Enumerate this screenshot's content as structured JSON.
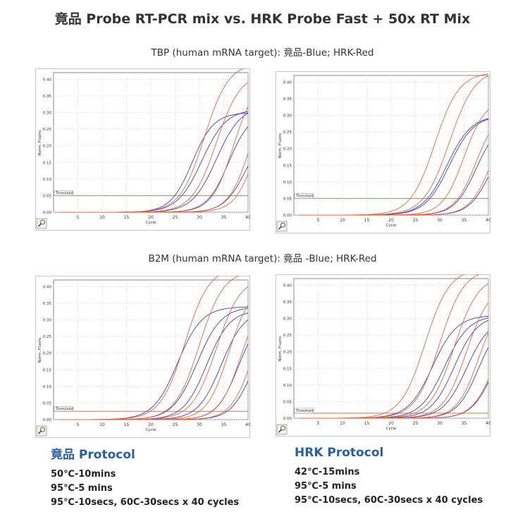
{
  "title": "竟品 Probe RT-PCR mix vs. HRK Probe Fast + 50x RT Mix",
  "subtitles": {
    "tbp": "TBP (human mRNA target): 竟品-Blue; HRK-Red",
    "b2m": "B2M (human mRNA target): 竟品 -Blue; HRK-Red"
  },
  "protocols": {
    "left": {
      "title": "竟品 Protocol",
      "lines": [
        "50℃-10mins",
        "95℃-5  mins",
        "95℃-10secs,  60C-30secs x 40 cycles"
      ]
    },
    "right": {
      "title": "HRK Protocol",
      "lines": [
        "42℃-15mins",
        "95℃-5  mins",
        "95℃-10secs,  60C-30secs x 40 cycles"
      ]
    }
  },
  "colors": {
    "blue": "#3b3fc2",
    "red": "#e8643a",
    "threshold": "#e07040"
  },
  "chart_data": [
    {
      "id": "tbp-left",
      "type": "line",
      "xlabel": "Cycle",
      "ylabel": "Norm. Fluoro.",
      "xlim": [
        0,
        40
      ],
      "ylim": [
        0,
        0.42
      ],
      "xticks": [
        "5",
        "10",
        "15",
        "20",
        "25",
        "30",
        "35",
        "40"
      ],
      "yticks": [
        "0.00",
        "0.05",
        "0.10",
        "0.15",
        "0.20",
        "0.25",
        "0.30",
        "0.35",
        "0.40"
      ],
      "threshold": 0.05,
      "threshold_label": "Threshold",
      "series": [
        {
          "color": "blue",
          "x0": 28.5,
          "max": 0.3,
          "k": 0.45
        },
        {
          "color": "blue",
          "x0": 30.5,
          "max": 0.31,
          "k": 0.4
        },
        {
          "color": "blue",
          "x0": 33.5,
          "max": 0.32,
          "k": 0.4
        },
        {
          "color": "blue",
          "x0": 36.0,
          "max": 0.3,
          "k": 0.45
        },
        {
          "color": "blue",
          "x0": 39.5,
          "max": 0.25,
          "k": 0.45
        },
        {
          "color": "red",
          "x0": 31.0,
          "max": 0.45,
          "k": 0.4
        },
        {
          "color": "red",
          "x0": 33.5,
          "max": 0.42,
          "k": 0.4
        },
        {
          "color": "red",
          "x0": 37.0,
          "max": 0.4,
          "k": 0.45
        },
        {
          "color": "red",
          "x0": 40.5,
          "max": 0.4,
          "k": 0.45
        },
        {
          "color": "red",
          "x0": 42.0,
          "max": 0.4,
          "k": 0.45
        }
      ]
    },
    {
      "id": "tbp-right",
      "type": "line",
      "xlabel": "Cycle",
      "ylabel": "Norm. Fluoro.",
      "xlim": [
        0,
        40
      ],
      "ylim": [
        0,
        0.42
      ],
      "xticks": [
        "5",
        "10",
        "15",
        "20",
        "25",
        "30",
        "35",
        "40"
      ],
      "yticks": [
        "0.00",
        "0.05",
        "0.10",
        "0.15",
        "0.20",
        "0.25",
        "0.30",
        "0.35",
        "0.40"
      ],
      "threshold": 0.05,
      "threshold_label": "Threshold",
      "series": [
        {
          "color": "blue",
          "x0": 31.5,
          "max": 0.3,
          "k": 0.4
        },
        {
          "color": "blue",
          "x0": 32.0,
          "max": 0.3,
          "k": 0.4
        },
        {
          "color": "blue",
          "x0": 37.5,
          "max": 0.28,
          "k": 0.45
        },
        {
          "color": "blue",
          "x0": 40.5,
          "max": 0.26,
          "k": 0.45
        },
        {
          "color": "red",
          "x0": 29.0,
          "max": 0.43,
          "k": 0.4
        },
        {
          "color": "red",
          "x0": 32.0,
          "max": 0.44,
          "k": 0.38
        },
        {
          "color": "red",
          "x0": 35.0,
          "max": 0.35,
          "k": 0.45
        },
        {
          "color": "red",
          "x0": 37.5,
          "max": 0.32,
          "k": 0.45
        },
        {
          "color": "red",
          "x0": 40.5,
          "max": 0.3,
          "k": 0.45
        }
      ]
    },
    {
      "id": "b2m-left",
      "type": "line",
      "xlabel": "Cycle",
      "ylabel": "Norm. Fluoro.",
      "xlim": [
        0,
        40
      ],
      "ylim": [
        0,
        0.42
      ],
      "xticks": [
        "5",
        "10",
        "15",
        "20",
        "25",
        "30",
        "35",
        "40"
      ],
      "yticks": [
        "0.00",
        "0.05",
        "0.10",
        "0.15",
        "0.20",
        "0.25",
        "0.30",
        "0.35",
        "0.40"
      ],
      "threshold": 0.025,
      "threshold_label": "Threshold",
      "series": [
        {
          "color": "blue",
          "x0": 25.5,
          "max": 0.34,
          "k": 0.4
        },
        {
          "color": "blue",
          "x0": 29.5,
          "max": 0.34,
          "k": 0.4
        },
        {
          "color": "blue",
          "x0": 31.5,
          "max": 0.33,
          "k": 0.42
        },
        {
          "color": "blue",
          "x0": 34.5,
          "max": 0.33,
          "k": 0.42
        },
        {
          "color": "blue",
          "x0": 38.0,
          "max": 0.32,
          "k": 0.45
        },
        {
          "color": "blue",
          "x0": 41.0,
          "max": 0.3,
          "k": 0.45
        },
        {
          "color": "red",
          "x0": 27.0,
          "max": 0.46,
          "k": 0.4
        },
        {
          "color": "red",
          "x0": 30.0,
          "max": 0.45,
          "k": 0.4
        },
        {
          "color": "red",
          "x0": 33.5,
          "max": 0.43,
          "k": 0.4
        },
        {
          "color": "red",
          "x0": 36.0,
          "max": 0.4,
          "k": 0.45
        },
        {
          "color": "red",
          "x0": 38.5,
          "max": 0.38,
          "k": 0.45
        },
        {
          "color": "red",
          "x0": 41.0,
          "max": 0.38,
          "k": 0.45
        }
      ]
    },
    {
      "id": "b2m-right",
      "type": "line",
      "xlabel": "Cycle",
      "ylabel": "Norm. Fluoro.",
      "xlim": [
        0,
        40
      ],
      "ylim": [
        0,
        0.42
      ],
      "xticks": [
        "5",
        "10",
        "15",
        "20",
        "25",
        "30",
        "35",
        "40"
      ],
      "yticks": [
        "0.00",
        "0.05",
        "0.10",
        "0.15",
        "0.20",
        "0.25",
        "0.30",
        "0.35",
        "0.40"
      ],
      "threshold": 0.015,
      "threshold_label": "Threshold",
      "series": [
        {
          "color": "blue",
          "x0": 28.5,
          "max": 0.31,
          "k": 0.4
        },
        {
          "color": "blue",
          "x0": 31.0,
          "max": 0.31,
          "k": 0.4
        },
        {
          "color": "blue",
          "x0": 33.0,
          "max": 0.31,
          "k": 0.42
        },
        {
          "color": "blue",
          "x0": 35.5,
          "max": 0.3,
          "k": 0.42
        },
        {
          "color": "blue",
          "x0": 38.0,
          "max": 0.3,
          "k": 0.45
        },
        {
          "color": "blue",
          "x0": 41.0,
          "max": 0.28,
          "k": 0.45
        },
        {
          "color": "red",
          "x0": 27.0,
          "max": 0.45,
          "k": 0.4
        },
        {
          "color": "red",
          "x0": 30.0,
          "max": 0.45,
          "k": 0.4
        },
        {
          "color": "red",
          "x0": 33.0,
          "max": 0.43,
          "k": 0.4
        },
        {
          "color": "red",
          "x0": 35.5,
          "max": 0.4,
          "k": 0.42
        },
        {
          "color": "red",
          "x0": 38.0,
          "max": 0.36,
          "k": 0.45
        },
        {
          "color": "red",
          "x0": 41.0,
          "max": 0.3,
          "k": 0.45
        }
      ]
    }
  ]
}
